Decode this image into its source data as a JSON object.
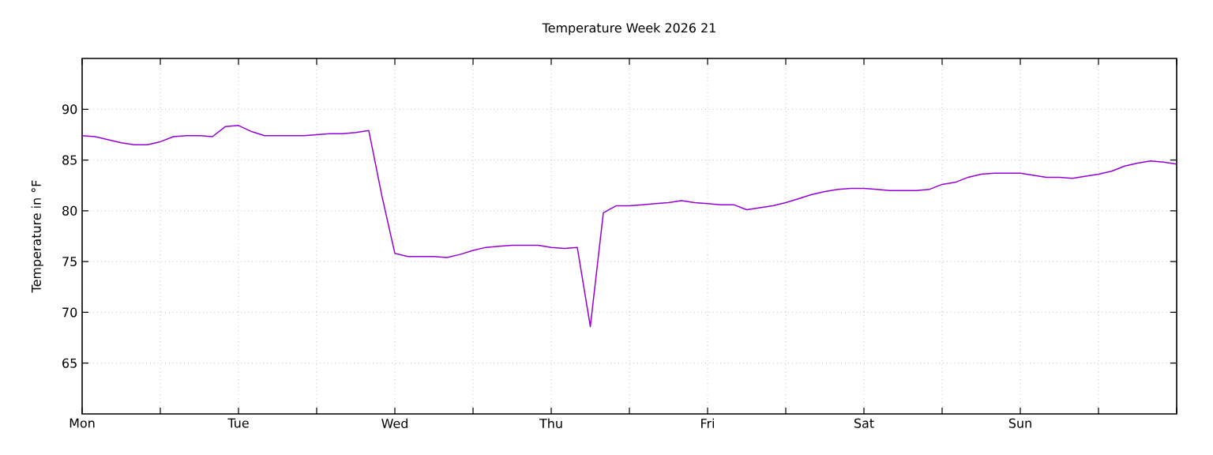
{
  "chart_data": {
    "type": "line",
    "title": "Temperature Week 2026 21",
    "ylabel": "Temperature in °F",
    "categories": [
      "Mon",
      null,
      null,
      null,
      null,
      null,
      null,
      null,
      null,
      null,
      null,
      null,
      "Tue",
      null,
      null,
      null,
      null,
      null,
      null,
      null,
      null,
      null,
      null,
      null,
      "Wed",
      null,
      null,
      null,
      null,
      null,
      null,
      null,
      null,
      null,
      null,
      null,
      "Thu",
      null,
      null,
      null,
      null,
      null,
      null,
      null,
      null,
      null,
      null,
      null,
      "Fri",
      null,
      null,
      null,
      null,
      null,
      null,
      null,
      null,
      null,
      null,
      null,
      "Sat",
      null,
      null,
      null,
      null,
      null,
      null,
      null,
      null,
      null,
      null,
      null,
      "Sun",
      null,
      null,
      null,
      null,
      null,
      null,
      null,
      null,
      null,
      null,
      null,
      null
    ],
    "ylim": [
      60,
      95
    ],
    "yticks": [
      65,
      70,
      75,
      80,
      85,
      90
    ],
    "grid": true,
    "marker": "none",
    "line_style": "solid",
    "series": [
      {
        "color": "#9400d3",
        "values": [
          87.4,
          87.3,
          87.0,
          86.7,
          86.5,
          86.5,
          86.8,
          87.3,
          87.4,
          87.4,
          87.3,
          88.3,
          88.4,
          87.8,
          87.4,
          87.4,
          87.4,
          87.4,
          87.5,
          87.6,
          87.6,
          87.7,
          87.9,
          81.5,
          75.8,
          75.5,
          75.5,
          75.5,
          75.4,
          75.7,
          76.1,
          76.4,
          76.5,
          76.6,
          76.6,
          76.6,
          76.4,
          76.3,
          76.4,
          68.6,
          79.8,
          80.5,
          80.5,
          80.6,
          80.7,
          80.8,
          81.0,
          80.8,
          80.7,
          80.6,
          80.6,
          80.1,
          80.3,
          80.5,
          80.8,
          81.2,
          81.6,
          81.9,
          82.1,
          82.2,
          82.2,
          82.1,
          82.0,
          82.0,
          82.0,
          82.1,
          82.6,
          82.8,
          83.3,
          83.6,
          83.7,
          83.7,
          83.7,
          83.5,
          83.3,
          83.3,
          83.2,
          83.4,
          83.6,
          83.9,
          84.4,
          84.7,
          84.9,
          84.8,
          84.6
        ]
      }
    ]
  }
}
